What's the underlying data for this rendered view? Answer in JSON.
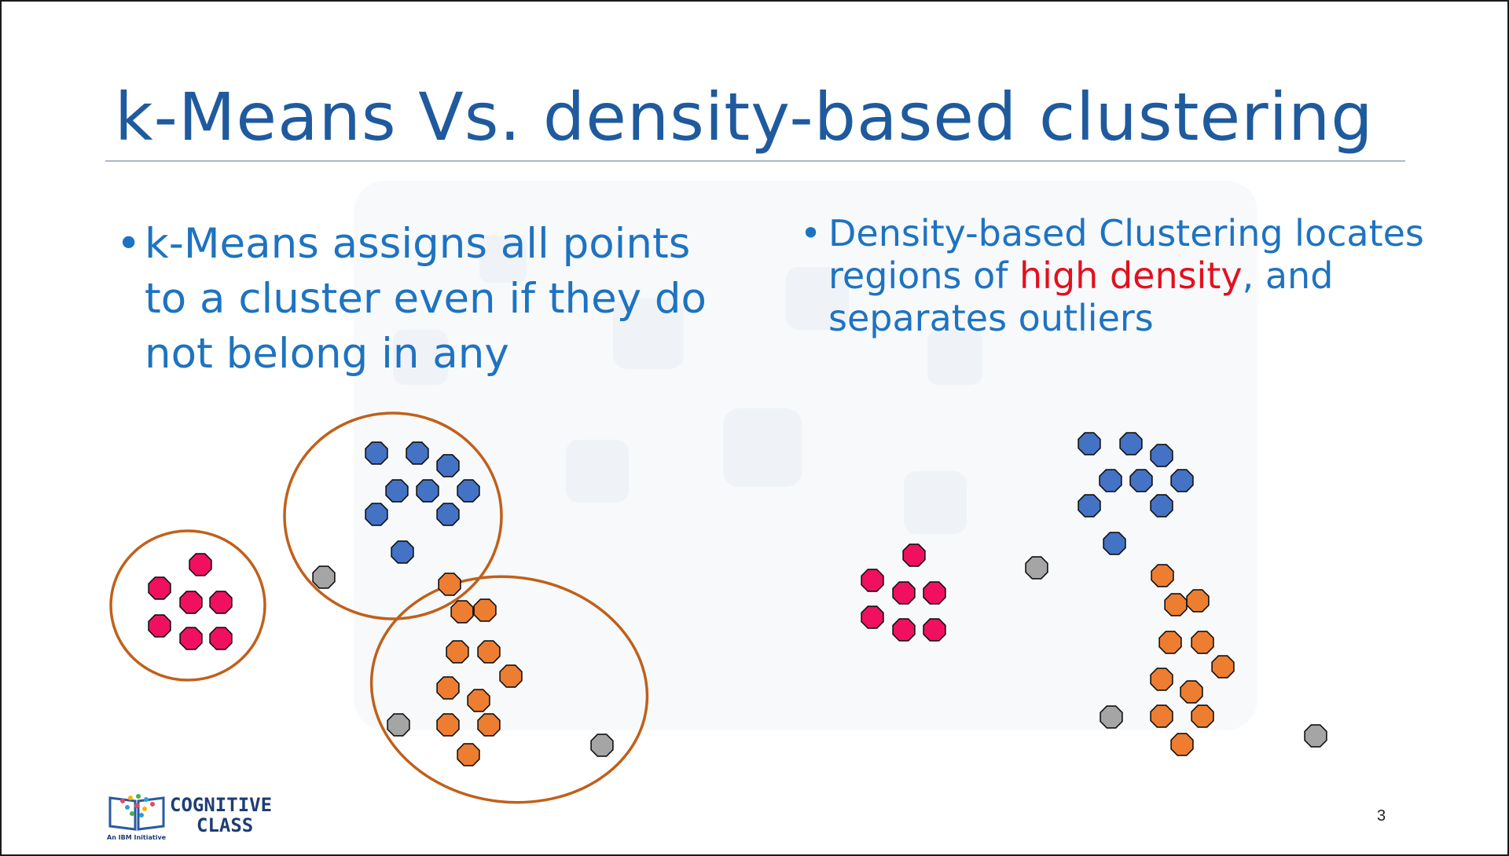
{
  "slide": {
    "title": "k-Means Vs. density-based clustering",
    "bullet_left": {
      "marker": "•",
      "text": "k-Means assigns all points to a cluster even if they do not belong in any"
    },
    "bullet_right": {
      "marker": "•",
      "text_before": "Density-based Clustering locates regions of ",
      "highlight": "high density",
      "text_after": ", and separates outliers"
    },
    "page_number": "3"
  },
  "logo": {
    "line1": "COGNITIVE",
    "line2": "CLASS",
    "tagline": "An IBM Initiative"
  },
  "colors": {
    "title": "#1f5a9e",
    "bullet_text": "#1e73c1",
    "highlight": "#e3101d",
    "cluster_ring": "#c0601a",
    "pink": "#f0105f",
    "blue": "#4472c4",
    "orange": "#ed7d31",
    "gray": "#a5a5a5"
  },
  "diagrams": {
    "kmeans": {
      "clusters": [
        {
          "name": "pink-cluster",
          "color": "pink"
        },
        {
          "name": "blue-cluster",
          "color": "blue"
        },
        {
          "name": "orange-cluster",
          "color": "orange"
        }
      ]
    },
    "density": {
      "clusters": [
        {
          "name": "pink-cluster",
          "color": "pink"
        },
        {
          "name": "blue-cluster",
          "color": "blue"
        },
        {
          "name": "orange-cluster",
          "color": "orange"
        }
      ],
      "outlier_color": "gray"
    }
  }
}
